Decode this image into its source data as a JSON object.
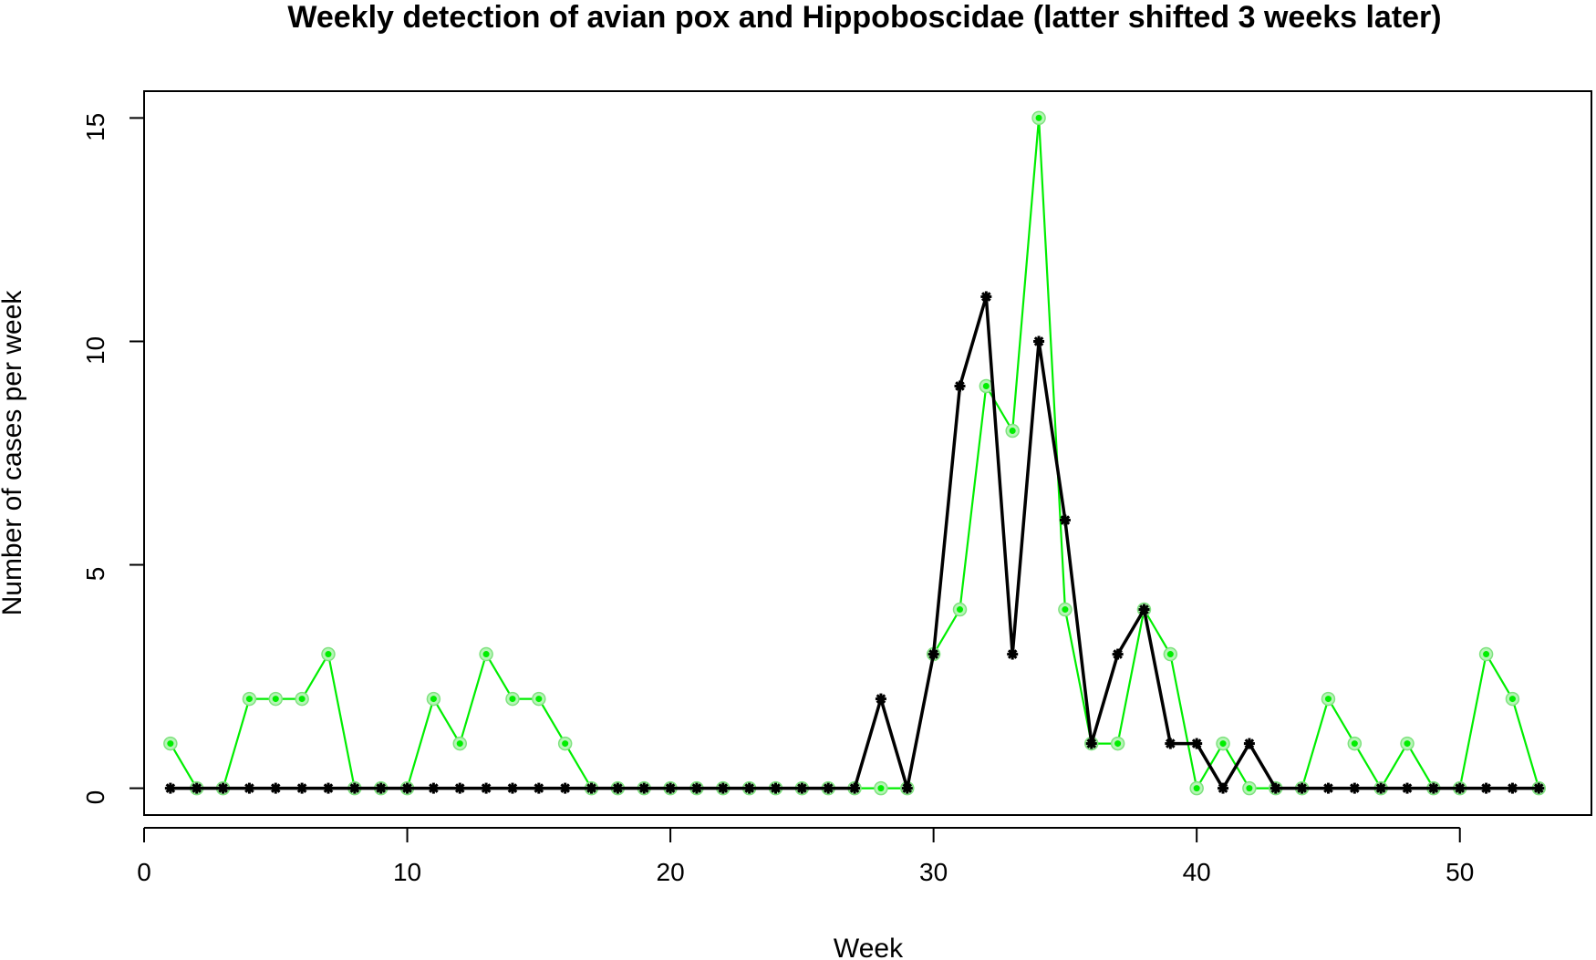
{
  "chart_data": {
    "type": "line",
    "title": "Weekly detection of avian pox and Hippoboscidae (latter shifted 3 weeks later)",
    "xlabel": "Week",
    "ylabel": "Number of cases per week",
    "xlim": [
      0,
      55
    ],
    "ylim": [
      -0.6,
      15.6
    ],
    "xticks": [
      0,
      10,
      20,
      30,
      40,
      50
    ],
    "yticks": [
      0,
      5,
      10,
      15
    ],
    "grid": false,
    "x": [
      1,
      2,
      3,
      4,
      5,
      6,
      7,
      8,
      9,
      10,
      11,
      12,
      13,
      14,
      15,
      16,
      17,
      18,
      19,
      20,
      21,
      22,
      23,
      24,
      25,
      26,
      27,
      28,
      29,
      30,
      31,
      32,
      33,
      34,
      35,
      36,
      37,
      38,
      39,
      40,
      41,
      42,
      43,
      44,
      45,
      46,
      47,
      48,
      49,
      50,
      51,
      52,
      53
    ],
    "series": [
      {
        "color": "#00ee00",
        "marker": "circle",
        "values": [
          1,
          0,
          0,
          2,
          2,
          2,
          3,
          0,
          0,
          0,
          2,
          1,
          3,
          2,
          2,
          1,
          0,
          0,
          0,
          0,
          0,
          0,
          0,
          0,
          0,
          0,
          0,
          0,
          0,
          3,
          4,
          9,
          8,
          15,
          4,
          1,
          1,
          4,
          3,
          0,
          1,
          0,
          0,
          0,
          2,
          1,
          0,
          1,
          0,
          0,
          3,
          2,
          0
        ]
      },
      {
        "color": "#000000",
        "marker": "star",
        "values": [
          0,
          0,
          0,
          0,
          0,
          0,
          0,
          0,
          0,
          0,
          0,
          0,
          0,
          0,
          0,
          0,
          0,
          0,
          0,
          0,
          0,
          0,
          0,
          0,
          0,
          0,
          0,
          2,
          0,
          3,
          9,
          11,
          3,
          10,
          6,
          1,
          3,
          4,
          1,
          1,
          0,
          1,
          0,
          0,
          0,
          0,
          0,
          0,
          0,
          0,
          0,
          0,
          0
        ]
      }
    ]
  }
}
